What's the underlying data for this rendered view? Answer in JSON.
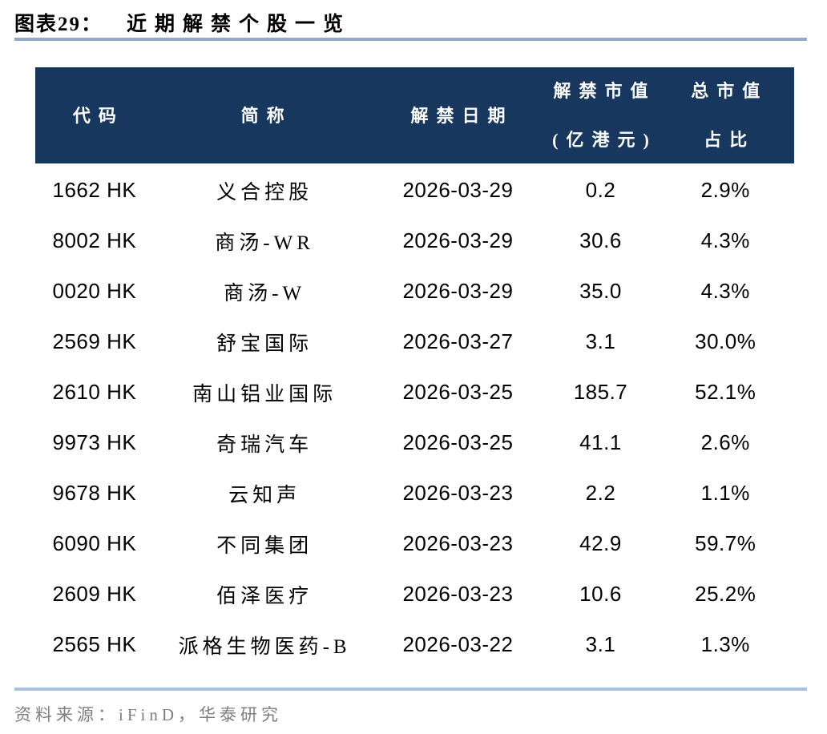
{
  "title": {
    "figure_label": "图表29：",
    "figure_title": "近期解禁个股一览"
  },
  "table": {
    "columns": [
      {
        "id": "code",
        "lines": [
          "代码"
        ]
      },
      {
        "id": "name",
        "lines": [
          "简称"
        ]
      },
      {
        "id": "date",
        "lines": [
          "解禁日期"
        ]
      },
      {
        "id": "unlock-value",
        "lines": [
          "解禁市值",
          "(亿港元)"
        ]
      },
      {
        "id": "total-mv-pct",
        "lines": [
          "总市值",
          "占比"
        ]
      }
    ]
  },
  "chart_data": {
    "type": "table",
    "title": "近期解禁个股一览",
    "columns": [
      "代码",
      "简称",
      "解禁日期",
      "解禁市值(亿港元)",
      "总市值占比"
    ],
    "rows": [
      {
        "code": "1662 HK",
        "name": "义合控股",
        "date": "2026-03-29",
        "unlock_value": "0.2",
        "total_mv_pct": "2.9%"
      },
      {
        "code": "8002 HK",
        "name": "商汤-WR",
        "date": "2026-03-29",
        "unlock_value": "30.6",
        "total_mv_pct": "4.3%"
      },
      {
        "code": "0020 HK",
        "name": "商汤-W",
        "date": "2026-03-29",
        "unlock_value": "35.0",
        "total_mv_pct": "4.3%"
      },
      {
        "code": "2569 HK",
        "name": "舒宝国际",
        "date": "2026-03-27",
        "unlock_value": "3.1",
        "total_mv_pct": "30.0%"
      },
      {
        "code": "2610 HK",
        "name": "南山铝业国际",
        "date": "2026-03-25",
        "unlock_value": "185.7",
        "total_mv_pct": "52.1%"
      },
      {
        "code": "9973 HK",
        "name": "奇瑞汽车",
        "date": "2026-03-25",
        "unlock_value": "41.1",
        "total_mv_pct": "2.6%"
      },
      {
        "code": "9678 HK",
        "name": "云知声",
        "date": "2026-03-23",
        "unlock_value": "2.2",
        "total_mv_pct": "1.1%"
      },
      {
        "code": "6090 HK",
        "name": "不同集团",
        "date": "2026-03-23",
        "unlock_value": "42.9",
        "total_mv_pct": "59.7%"
      },
      {
        "code": "2609 HK",
        "name": "佰泽医疗",
        "date": "2026-03-23",
        "unlock_value": "10.6",
        "total_mv_pct": "25.2%"
      },
      {
        "code": "2565 HK",
        "name": "派格生物医药-B",
        "date": "2026-03-22",
        "unlock_value": "3.1",
        "total_mv_pct": "1.3%"
      }
    ]
  },
  "footer": {
    "source_text": "资料来源：iFinD，华泰研究"
  },
  "colors": {
    "header_bg": "#17375e",
    "header_text": "#ffffff",
    "title_rule": "#92a9c7",
    "footer_rule": "#a8c2df",
    "source_text": "#7f7f7f",
    "body_text": "#000000"
  }
}
